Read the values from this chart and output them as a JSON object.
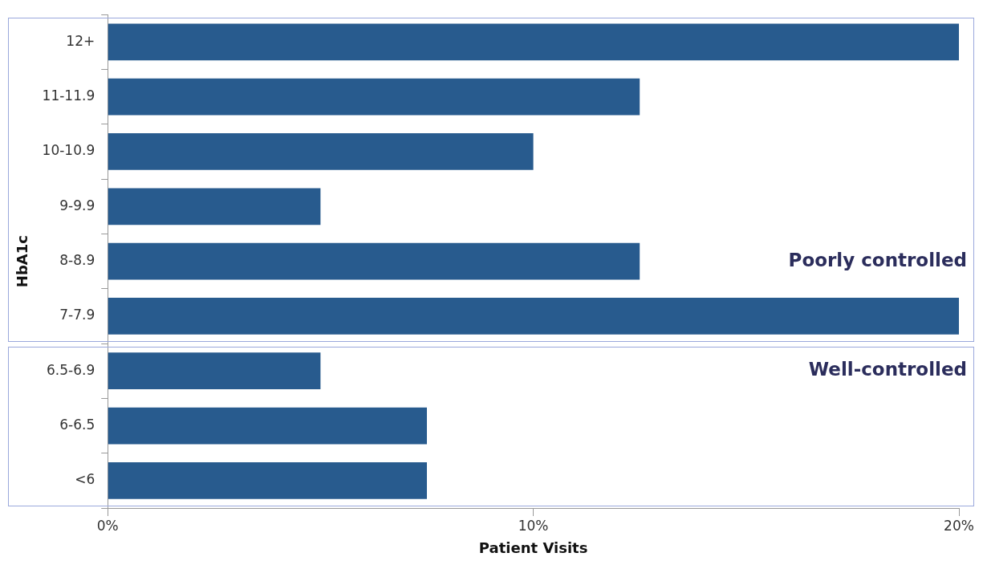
{
  "chart_data": {
    "type": "bar",
    "orientation": "horizontal",
    "xlabel": "Patient Visits",
    "ylabel": "HbA1c",
    "categories": [
      "12+",
      "11-11.9",
      "10-10.9",
      "9-9.9",
      "8-8.9",
      "7-7.9",
      "6.5-6.9",
      "6-6.5",
      "<6"
    ],
    "values": [
      20,
      12.5,
      10,
      5,
      12.5,
      20,
      5,
      7.5,
      7.5
    ],
    "color": "#285b8e",
    "xlim": [
      0,
      20
    ],
    "xticks": [
      {
        "value": 0,
        "label": "0%"
      },
      {
        "value": 10,
        "label": "10%"
      },
      {
        "value": 20,
        "label": "20%"
      }
    ],
    "grid": false,
    "legend": false,
    "annotations": [
      "Poorly controlled",
      "Well-controlled"
    ]
  }
}
